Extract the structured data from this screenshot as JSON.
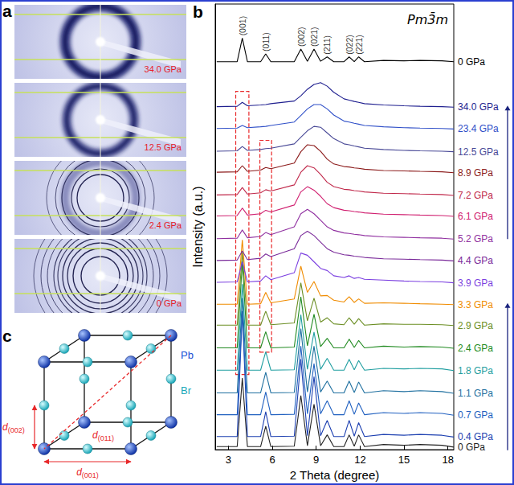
{
  "panel_letters": [
    "a",
    "b",
    "c"
  ],
  "panel_a": {
    "images": [
      {
        "label": "34.0 GPa"
      },
      {
        "label": "12.5 GPa"
      },
      {
        "label": "2.4 GPa"
      },
      {
        "label": "0 GPa"
      }
    ]
  },
  "panel_c": {
    "atoms": [
      {
        "label": "Pb",
        "color": "#1a4fd6"
      },
      {
        "label": "Br",
        "color": "#1aa7b8"
      }
    ],
    "distances": [
      {
        "base": "d",
        "sub": "(001)"
      },
      {
        "base": "d",
        "sub": "(002)"
      },
      {
        "base": "d",
        "sub": "(011)"
      }
    ]
  },
  "chart_data": {
    "type": "line",
    "x_label": "2 Theta (degree)",
    "y_label": "Intensity (a.u.)",
    "annotation": "Pm3̄m",
    "x": [
      2.2,
      3.6,
      3.95,
      4.3,
      5.2,
      5.55,
      5.9,
      7.5,
      7.95,
      8.4,
      8.85,
      9.3,
      9.75,
      10.2,
      10.9,
      11.25,
      11.6,
      11.9,
      12.3,
      13.6,
      15.0,
      16.1,
      17.6,
      18.4
    ],
    "xlim": [
      2.1,
      18.4
    ],
    "xticks": [
      3,
      6,
      9,
      12,
      15,
      18
    ],
    "ylim": [
      0,
      102
    ],
    "tick_labels": "x",
    "grid": false,
    "peak_labels": [
      {
        "text": "(001)",
        "x": 3.95
      },
      {
        "text": "(011)",
        "x": 5.55
      },
      {
        "text": "(002)",
        "x": 7.95
      },
      {
        "text": "(021)",
        "x": 8.85
      },
      {
        "text": "(211)",
        "x": 9.75
      },
      {
        "text": "(022)",
        "x": 11.25
      },
      {
        "text": "(221)",
        "x": 11.9
      }
    ],
    "series": [
      {
        "name": "0 GPa",
        "color": "#222222",
        "values": [
          0.7,
          0.7,
          16.4,
          0.7,
          0.7,
          5.4,
          0.7,
          0.8,
          12.4,
          0.9,
          10.4,
          0.9,
          3.4,
          0.7,
          0.7,
          3.4,
          0.8,
          3.4,
          0.7,
          1.2,
          1.0,
          1.2,
          1.0,
          0.6
        ]
      },
      {
        "name": "0.4 GPa",
        "color": "#1c3fb0",
        "values": [
          3.0,
          3.0,
          31.7,
          3.0,
          3.0,
          8.7,
          3.0,
          3.1,
          20.7,
          3.2,
          16.7,
          3.2,
          6.7,
          3.0,
          3.0,
          6.7,
          3.1,
          6.2,
          3.0,
          3.5,
          3.3,
          3.5,
          3.3,
          2.9
        ]
      },
      {
        "name": "0.7 GPa",
        "color": "#2060c0",
        "values": [
          8.0,
          8.0,
          31.7,
          8.0,
          8.0,
          13.2,
          8.0,
          8.1,
          23.7,
          8.2,
          19.7,
          8.2,
          11.2,
          8.0,
          8.0,
          11.2,
          8.1,
          10.7,
          8.0,
          8.5,
          8.3,
          8.5,
          8.3,
          7.9
        ]
      },
      {
        "name": "1.1 GPa",
        "color": "#1e6f9f",
        "values": [
          13.0,
          13.0,
          34.7,
          13.0,
          13.0,
          17.7,
          13.0,
          13.1,
          27.7,
          13.2,
          23.7,
          13.2,
          15.7,
          13.0,
          13.0,
          15.7,
          13.1,
          15.5,
          13.0,
          13.5,
          13.3,
          13.5,
          13.3,
          12.9
        ]
      },
      {
        "name": "1.8 GPa",
        "color": "#1f9ea0",
        "values": [
          18.2,
          18.2,
          37.9,
          18.2,
          18.2,
          22.4,
          18.2,
          18.3,
          30.9,
          18.4,
          26.9,
          18.4,
          20.9,
          18.2,
          18.2,
          20.7,
          18.3,
          20.4,
          18.2,
          18.6,
          18.5,
          18.6,
          18.5,
          18.1
        ]
      },
      {
        "name": "2.4 GPa",
        "color": "#228b22",
        "values": [
          23.3,
          23.3,
          43.0,
          23.3,
          23.3,
          27.0,
          23.3,
          23.5,
          35.0,
          23.8,
          31.0,
          23.6,
          25.5,
          23.3,
          23.3,
          25.3,
          23.4,
          25.0,
          23.3,
          23.7,
          23.5,
          23.6,
          23.5,
          23.2
        ]
      },
      {
        "name": "2.9 GPa",
        "color": "#6b8e23",
        "values": [
          28.5,
          28.5,
          45.2,
          28.5,
          28.5,
          31.7,
          28.6,
          29.0,
          38.2,
          29.5,
          34.7,
          29.2,
          30.2,
          28.8,
          28.6,
          30.2,
          28.7,
          30.0,
          28.5,
          28.8,
          28.7,
          28.7,
          28.6,
          28.4
        ]
      },
      {
        "name": "3.3 GPa",
        "color": "#f08c00",
        "values": [
          33.3,
          33.3,
          48.0,
          33.3,
          33.4,
          36.0,
          33.6,
          34.5,
          42.0,
          36.0,
          38.5,
          35.2,
          35.3,
          34.2,
          33.8,
          35.0,
          33.7,
          34.5,
          33.5,
          33.6,
          33.5,
          33.4,
          33.3,
          33.2
        ]
      },
      {
        "name": "3.9 GPa",
        "color": "#7b3fe0",
        "values": [
          38.3,
          38.4,
          43.0,
          38.4,
          38.6,
          39.8,
          38.9,
          40.5,
          45.0,
          44.5,
          43.0,
          41.5,
          41.0,
          39.8,
          39.4,
          39.8,
          39.2,
          39.4,
          39.0,
          38.8,
          38.6,
          38.5,
          38.4,
          38.2
        ]
      },
      {
        "name": "4.4 GPa",
        "color": "#7a2a9a",
        "values": [
          43.3,
          43.4,
          45.5,
          43.5,
          43.8,
          44.8,
          44.2,
          46.0,
          49.0,
          50.0,
          49.0,
          47.5,
          46.0,
          45.2,
          44.6,
          44.5,
          44.3,
          44.2,
          44.0,
          43.7,
          43.6,
          43.5,
          43.4,
          43.2
        ]
      },
      {
        "name": "5.2 GPa",
        "color": "#9030a0",
        "values": [
          48.3,
          48.4,
          50.3,
          48.5,
          48.8,
          49.7,
          49.2,
          51.0,
          54.0,
          55.0,
          54.0,
          52.5,
          51.0,
          50.2,
          49.6,
          49.5,
          49.3,
          49.2,
          49.0,
          48.7,
          48.6,
          48.5,
          48.4,
          48.2
        ]
      },
      {
        "name": "6.1 GPa",
        "color": "#d02070",
        "values": [
          53.5,
          53.6,
          55.3,
          53.7,
          54.0,
          54.8,
          54.4,
          56.0,
          59.0,
          60.2,
          59.4,
          58.0,
          56.3,
          55.4,
          54.8,
          54.7,
          54.5,
          54.4,
          54.2,
          53.9,
          53.8,
          53.7,
          53.6,
          53.4
        ]
      },
      {
        "name": "7.2 GPa",
        "color": "#c0284a",
        "values": [
          58.3,
          58.4,
          60.0,
          58.5,
          58.8,
          59.5,
          59.2,
          60.6,
          63.5,
          65.0,
          64.5,
          63.0,
          61.2,
          60.2,
          59.6,
          59.5,
          59.3,
          59.2,
          59.0,
          58.7,
          58.6,
          58.5,
          58.4,
          58.2
        ]
      },
      {
        "name": "8.9 GPa",
        "color": "#8b1a1a",
        "values": [
          63.5,
          63.6,
          65.0,
          63.7,
          64.0,
          64.6,
          64.3,
          65.6,
          68.2,
          69.8,
          69.6,
          68.3,
          66.5,
          65.4,
          64.8,
          64.7,
          64.5,
          64.4,
          64.2,
          63.9,
          63.8,
          63.7,
          63.6,
          63.4
        ]
      },
      {
        "name": "12.5 GPa",
        "color": "#484896",
        "values": [
          68.3,
          68.4,
          69.4,
          68.5,
          68.7,
          68.9,
          69.0,
          70.0,
          71.5,
          73.0,
          74.0,
          73.8,
          72.5,
          71.2,
          70.0,
          69.8,
          69.5,
          69.3,
          69.0,
          68.7,
          68.5,
          68.4,
          68.3,
          68.2
        ]
      },
      {
        "name": "23.4 GPa",
        "color": "#3050c8",
        "values": [
          73.5,
          73.6,
          74.2,
          73.7,
          73.9,
          74.0,
          74.2,
          75.0,
          76.5,
          78.0,
          79.0,
          79.0,
          78.0,
          76.6,
          75.2,
          75.0,
          74.7,
          74.5,
          74.2,
          73.9,
          73.7,
          73.6,
          73.5,
          73.4
        ]
      },
      {
        "name": "34.0 GPa",
        "color": "#1f1f8f",
        "values": [
          78.5,
          78.6,
          79.5,
          78.7,
          78.9,
          79.0,
          79.2,
          79.8,
          81.0,
          82.5,
          83.6,
          84.0,
          83.2,
          81.8,
          80.3,
          80.0,
          79.7,
          79.5,
          79.2,
          78.9,
          78.7,
          78.6,
          78.5,
          78.4
        ]
      },
      {
        "name": "0 GPa",
        "color": "#000000",
        "values": [
          88.8,
          88.8,
          94.2,
          88.8,
          88.8,
          90.6,
          88.8,
          88.8,
          91.7,
          88.9,
          91.7,
          88.9,
          89.9,
          88.8,
          88.8,
          89.9,
          88.8,
          89.9,
          88.8,
          89.1,
          89.0,
          89.1,
          89.0,
          88.8
        ]
      }
    ]
  }
}
